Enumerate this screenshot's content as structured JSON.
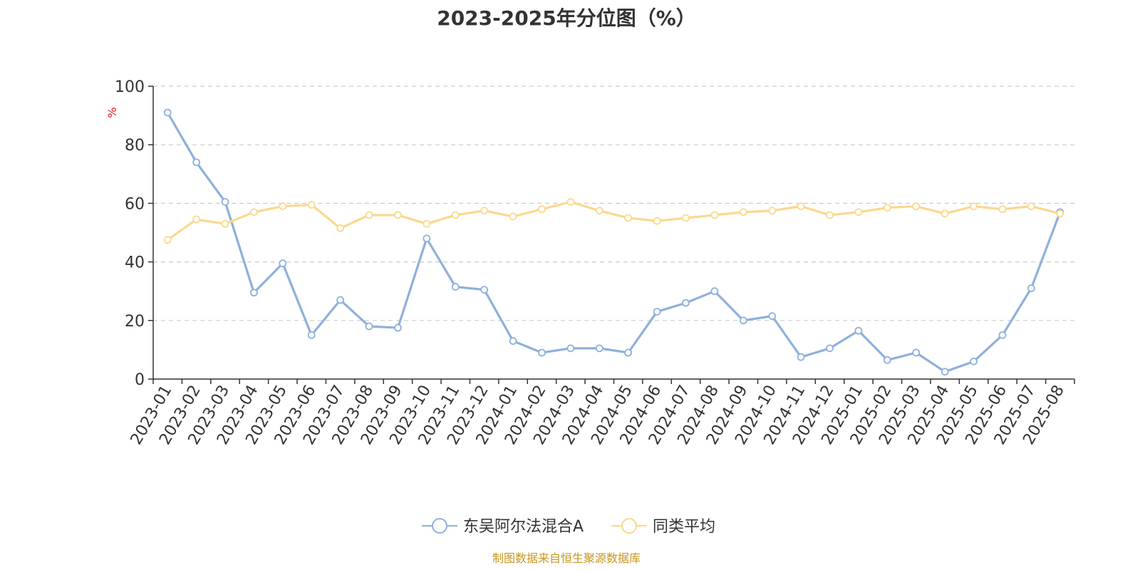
{
  "title": "2023-2025年分位图（%）",
  "source": "制图数据来自恒生聚源数据库",
  "chart_data": {
    "type": "line",
    "title": "2023-2025年分位图（%）",
    "ylabel": "%",
    "ylim": [
      0,
      100
    ],
    "yticks": [
      0,
      20,
      40,
      60,
      80,
      100
    ],
    "grid": true,
    "legend_position": "bottom-center",
    "categories": [
      "2023-01",
      "2023-02",
      "2023-03",
      "2023-04",
      "2023-05",
      "2023-06",
      "2023-07",
      "2023-08",
      "2023-09",
      "2023-10",
      "2023-11",
      "2023-12",
      "2024-01",
      "2024-02",
      "2024-03",
      "2024-04",
      "2024-05",
      "2024-06",
      "2024-07",
      "2024-08",
      "2024-09",
      "2024-10",
      "2024-11",
      "2024-12",
      "2025-01",
      "2025-02",
      "2025-03",
      "2025-04",
      "2025-05",
      "2025-06",
      "2025-07",
      "2025-08"
    ],
    "series": [
      {
        "name": "东吴阿尔法混合A",
        "color": "#8eb0dc",
        "values": [
          91,
          74,
          60.5,
          29.5,
          39.5,
          15,
          27,
          18,
          17.5,
          48,
          31.5,
          30.5,
          13,
          9,
          10.5,
          10.5,
          9,
          23,
          26,
          30,
          20,
          21.5,
          7.5,
          10.5,
          16.5,
          6.5,
          9,
          2.5,
          6,
          15,
          31,
          57
        ]
      },
      {
        "name": "同类平均",
        "color": "#fbd88e",
        "values": [
          47.5,
          54.5,
          53,
          57,
          59,
          59.5,
          51.5,
          56,
          56,
          53,
          56,
          57.5,
          55.5,
          58,
          60.5,
          57.5,
          55,
          54,
          55,
          56,
          57,
          57.5,
          59,
          56,
          57,
          58.5,
          59,
          56.5,
          59,
          58,
          59,
          56.5
        ]
      }
    ]
  }
}
